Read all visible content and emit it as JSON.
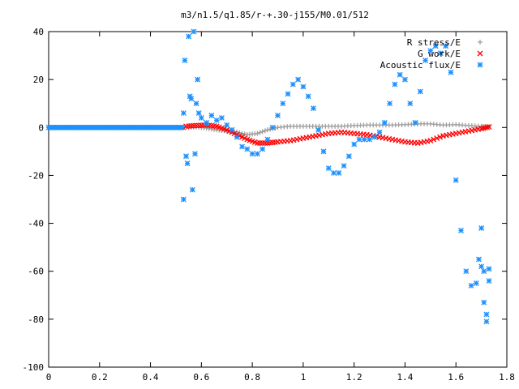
{
  "chart_data": {
    "type": "scatter",
    "title": "m3/n1.5/q1.85/r-+.30-j155/M0.01/512",
    "xlabel": "",
    "ylabel": "",
    "xlim": [
      0,
      1.8
    ],
    "ylim": [
      -100,
      40
    ],
    "x_ticks": [
      "0",
      "0.2",
      "0.4",
      "0.6",
      "0.8",
      "1",
      "1.2",
      "1.4",
      "1.6",
      "1.8"
    ],
    "y_ticks": [
      "40",
      "20",
      "0",
      "-20",
      "-40",
      "-60",
      "-80",
      "-100"
    ],
    "legend_position": "top-right",
    "series": [
      {
        "name": "R stress/E",
        "marker": "plus",
        "color": "#a0a0a0",
        "x": [
          0.54,
          0.58,
          0.62,
          0.66,
          0.7,
          0.74,
          0.78,
          0.82,
          0.86,
          0.9,
          0.95,
          1.0,
          1.05,
          1.1,
          1.15,
          1.2,
          1.25,
          1.3,
          1.35,
          1.4,
          1.45,
          1.5,
          1.55,
          1.6,
          1.65,
          1.7,
          1.73
        ],
        "y": [
          0.0,
          0.2,
          -0.3,
          -1.0,
          -1.5,
          -2.0,
          -3.0,
          -2.5,
          -1.0,
          0.0,
          0.5,
          0.5,
          0.5,
          0.5,
          0.5,
          0.8,
          1.0,
          1.0,
          1.0,
          1.2,
          1.5,
          1.5,
          1.0,
          1.2,
          0.8,
          0.5,
          0.3
        ]
      },
      {
        "name": "G work/E",
        "marker": "cross",
        "color": "#ff0000",
        "x": [
          0.54,
          0.58,
          0.62,
          0.66,
          0.7,
          0.74,
          0.78,
          0.82,
          0.86,
          0.9,
          0.95,
          1.0,
          1.05,
          1.1,
          1.15,
          1.2,
          1.25,
          1.3,
          1.35,
          1.4,
          1.45,
          1.5,
          1.55,
          1.6,
          1.65,
          1.7,
          1.73
        ],
        "y": [
          0.5,
          0.8,
          1.0,
          0.5,
          -1.0,
          -3.0,
          -5.0,
          -6.5,
          -6.5,
          -6.0,
          -5.5,
          -4.5,
          -3.5,
          -2.5,
          -2.0,
          -2.5,
          -3.0,
          -4.0,
          -5.0,
          -6.0,
          -6.5,
          -5.5,
          -3.5,
          -2.5,
          -1.5,
          -0.5,
          0.3
        ]
      },
      {
        "name": "Acoustic flux/E",
        "marker": "star",
        "color": "#1e90ff",
        "x": [
          0.53,
          0.53,
          0.535,
          0.54,
          0.545,
          0.55,
          0.555,
          0.56,
          0.565,
          0.57,
          0.575,
          0.58,
          0.585,
          0.59,
          0.6,
          0.62,
          0.64,
          0.66,
          0.68,
          0.7,
          0.72,
          0.74,
          0.76,
          0.78,
          0.8,
          0.82,
          0.84,
          0.86,
          0.88,
          0.9,
          0.92,
          0.94,
          0.96,
          0.98,
          1.0,
          1.02,
          1.04,
          1.06,
          1.08,
          1.1,
          1.12,
          1.14,
          1.16,
          1.18,
          1.2,
          1.22,
          1.24,
          1.26,
          1.28,
          1.3,
          1.32,
          1.34,
          1.36,
          1.38,
          1.4,
          1.42,
          1.44,
          1.46,
          1.48,
          1.5,
          1.52,
          1.54,
          1.56,
          1.58,
          1.6,
          1.62,
          1.64,
          1.66,
          1.68,
          1.69,
          1.7,
          1.7,
          1.71,
          1.71,
          1.72,
          1.72,
          1.73,
          1.73
        ],
        "y": [
          -30,
          6,
          28,
          -12,
          -15,
          38,
          13,
          12,
          -26,
          40,
          -11,
          10,
          20,
          6,
          4,
          2,
          5,
          3,
          4,
          1,
          -1,
          -4,
          -8,
          -9,
          -11,
          -11,
          -9,
          -5,
          0,
          5,
          10,
          14,
          18,
          20,
          17,
          13,
          8,
          -1,
          -10,
          -17,
          -19,
          -19,
          -16,
          -12,
          -7,
          -5,
          -5,
          -5,
          -4,
          -2,
          2,
          10,
          18,
          22,
          20,
          10,
          2,
          15,
          28,
          32,
          34,
          31,
          34,
          23,
          -22,
          -43,
          -60,
          -66,
          -65,
          -55,
          -58,
          -42,
          -60,
          -73,
          -78,
          -81,
          -64,
          -59
        ]
      }
    ]
  }
}
